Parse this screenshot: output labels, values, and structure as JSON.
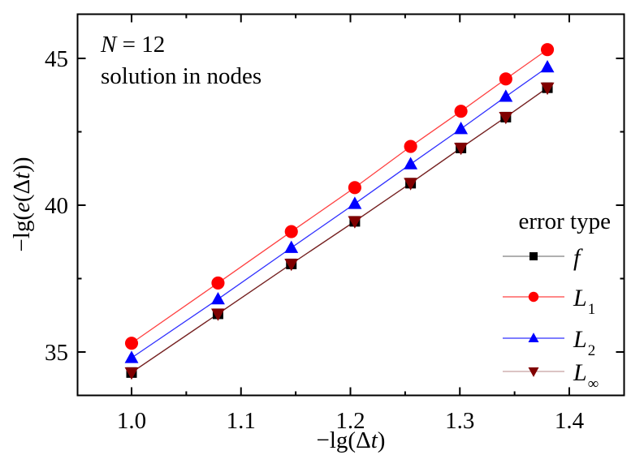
{
  "chart_data": {
    "type": "line",
    "title": "",
    "xlabel": "−lg(Δt)",
    "ylabel": "−lg(e(Δt))",
    "xlim": [
      0.95,
      1.45
    ],
    "ylim": [
      33.2,
      46.5
    ],
    "xticks": [
      1.0,
      1.1,
      1.2,
      1.3,
      1.4
    ],
    "xtick_labels": [
      "1.0",
      "1.1",
      "1.2",
      "1.3",
      "1.4"
    ],
    "yticks": [
      35,
      40,
      45
    ],
    "ytick_labels": [
      "35",
      "40",
      "45"
    ],
    "grid": false,
    "legend_position": "lower right",
    "legend_title": "error type",
    "annotations": [
      "N = 12",
      "solution in nodes"
    ],
    "x": [
      1.0,
      1.079,
      1.146,
      1.204,
      1.255,
      1.301,
      1.342,
      1.38
    ],
    "series": [
      {
        "name": "f",
        "label_main": "f",
        "label_sub": "",
        "marker": "square",
        "color": "#000000",
        "line_color": "#808080",
        "values": [
          34.3,
          36.3,
          38.0,
          39.45,
          40.75,
          41.95,
          43.0,
          44.0
        ]
      },
      {
        "name": "L1",
        "label_main": "L",
        "label_sub": "1",
        "marker": "circle",
        "color": "#ff0000",
        "line_color": "#ff4040",
        "values": [
          35.3,
          37.35,
          39.1,
          40.6,
          42.0,
          43.2,
          44.3,
          45.3
        ]
      },
      {
        "name": "L2",
        "label_main": "L",
        "label_sub": "2",
        "marker": "triangle-up",
        "color": "#0000ff",
        "line_color": "#3030ff",
        "values": [
          34.8,
          36.8,
          38.55,
          40.05,
          41.4,
          42.6,
          43.7,
          44.7
        ]
      },
      {
        "name": "L∞",
        "label_main": "L",
        "label_sub": "∞",
        "marker": "triangle-down",
        "color": "#800000",
        "line_color": "#7a2020",
        "legend_line_color": "#c8a0a0",
        "values": [
          34.3,
          36.3,
          38.0,
          39.45,
          40.75,
          41.95,
          43.0,
          44.0
        ]
      }
    ]
  },
  "annotation": {
    "line1_var": "N",
    "line1_rest": " = 12",
    "line2": "solution in nodes"
  },
  "axes": {
    "xlabel_prefix": "−lg(Δ",
    "xlabel_var": "t",
    "xlabel_suffix": ")",
    "ylabel_prefix": "−lg(",
    "ylabel_var_e": "e",
    "ylabel_mid": "(Δ",
    "ylabel_var_t": "t",
    "ylabel_suffix": "))"
  },
  "legend": {
    "title": "error type"
  }
}
